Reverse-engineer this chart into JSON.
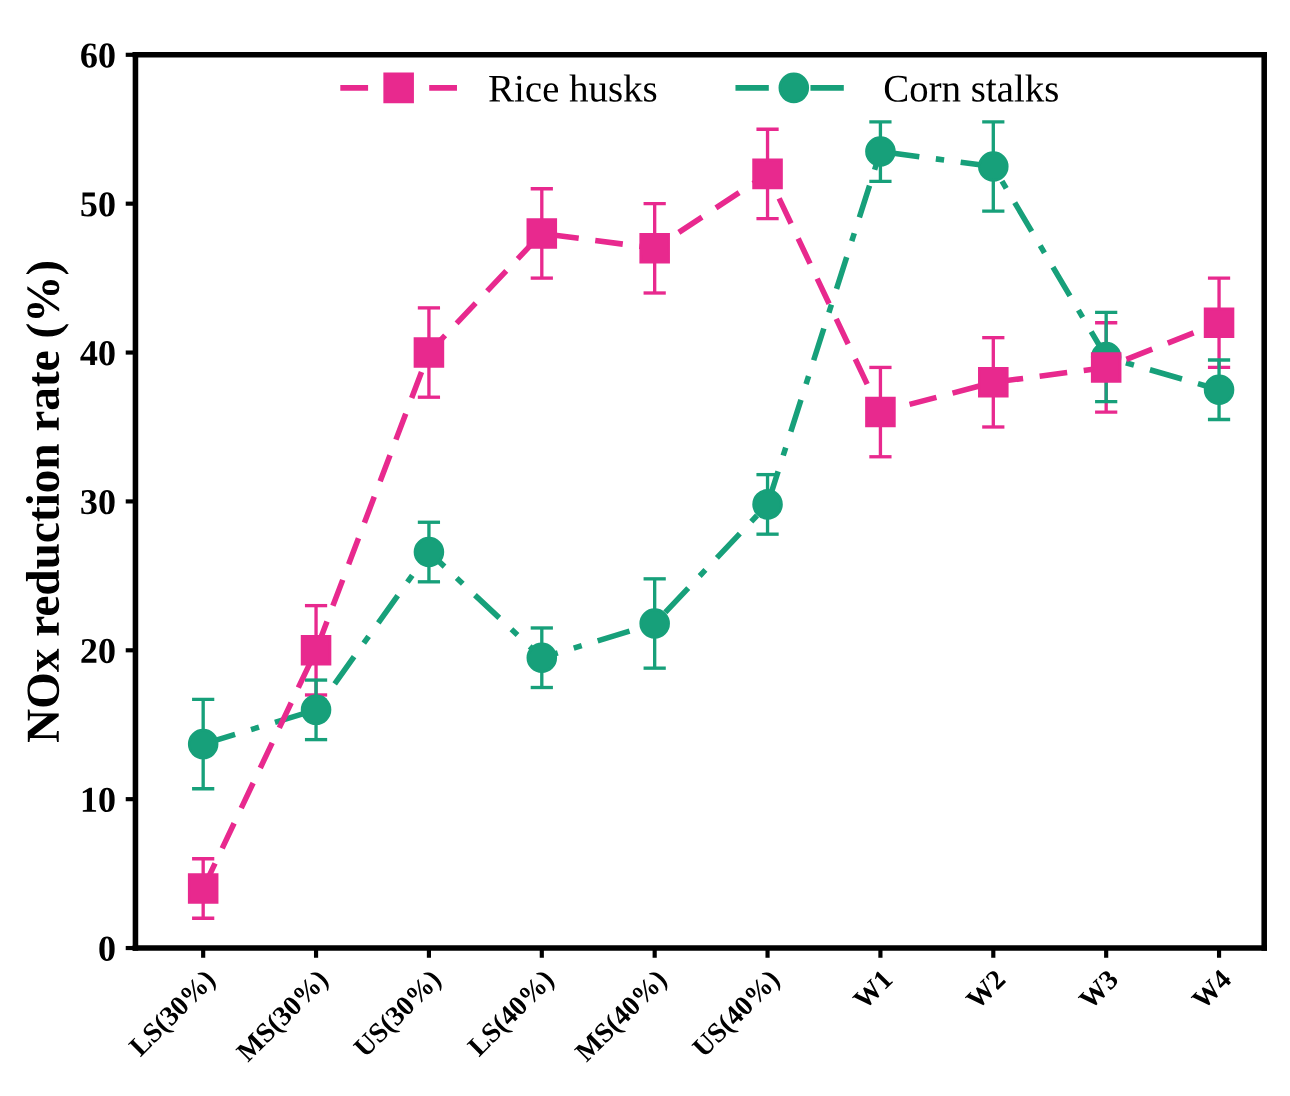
{
  "chart_data": {
    "type": "line",
    "ylabel": "NOx reduction rate (%)",
    "categories": [
      "LS(30%)",
      "MS(30%)",
      "US(30%)",
      "LS(40%)",
      "MS(40%)",
      "US(40%)",
      "W1",
      "W2",
      "W3",
      "W4"
    ],
    "series": [
      {
        "name": "Rice husks",
        "color": "#e8298e",
        "marker": "square",
        "line_style": "dashed",
        "values": [
          4,
          20,
          40,
          48,
          47,
          52,
          36,
          38,
          39,
          42
        ],
        "errors": [
          2,
          3,
          3,
          3,
          3,
          3,
          3,
          3,
          3,
          3
        ]
      },
      {
        "name": "Corn stalks",
        "color": "#17a07a",
        "marker": "circle",
        "line_style": "dashdot",
        "values": [
          13.7,
          16,
          26.6,
          19.5,
          21.8,
          29.8,
          53.5,
          52.5,
          39.7,
          37.5
        ],
        "errors": [
          3,
          2,
          2,
          2,
          3,
          2,
          2,
          3,
          3,
          2
        ]
      }
    ],
    "ylim": [
      0,
      60
    ],
    "yticks": [
      0,
      10,
      20,
      30,
      40,
      50,
      60
    ],
    "grid": false,
    "legend": "top"
  }
}
